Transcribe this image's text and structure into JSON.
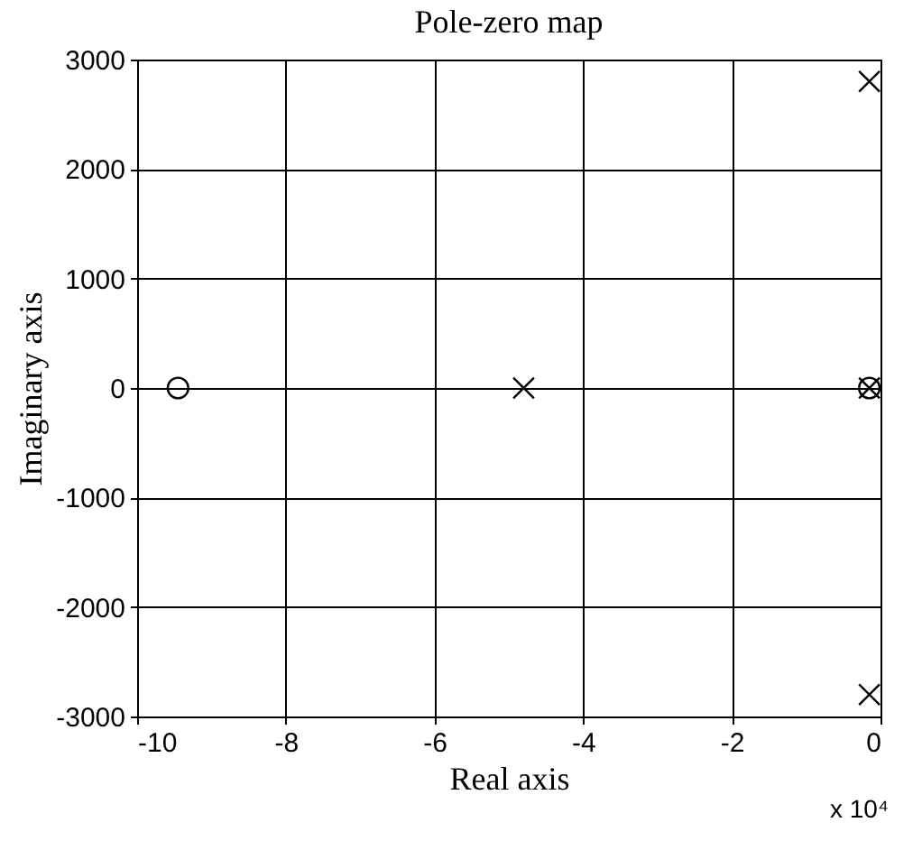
{
  "chart_data": {
    "type": "scatter",
    "title": "Pole-zero map",
    "xlabel": "Real axis",
    "ylabel": "Imaginary axis",
    "xlim": [
      -10,
      0
    ],
    "xticks": [
      -10,
      -8,
      -6,
      -4,
      -2,
      0
    ],
    "ylim": [
      -3000,
      3000
    ],
    "yticks": [
      -3000,
      -2000,
      -1000,
      0,
      1000,
      2000,
      3000
    ],
    "grid": true,
    "series": [
      {
        "color": "#000000",
        "marker": "cross",
        "x": [
          -4.8,
          -0.15,
          -0.15,
          -0.15
        ],
        "values": [
          0,
          2800,
          -2800,
          0
        ]
      },
      {
        "color": "#000000",
        "marker": "circle",
        "x": [
          -9.45,
          -0.15
        ],
        "values": [
          0,
          0
        ]
      }
    ],
    "annotations": [
      "x 10⁴"
    ]
  }
}
